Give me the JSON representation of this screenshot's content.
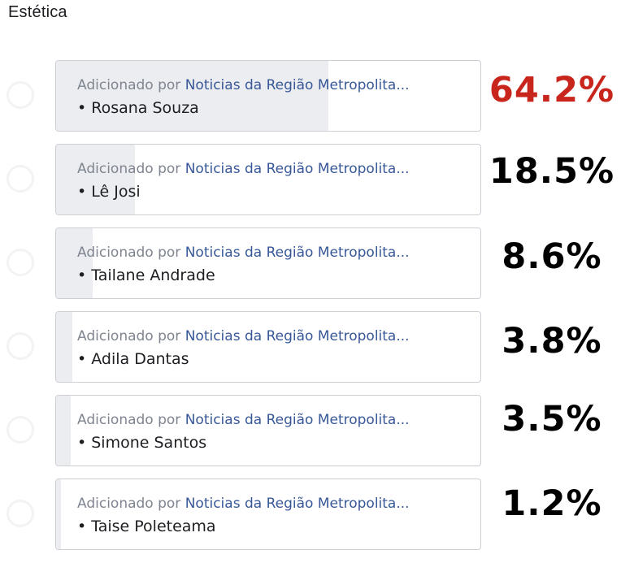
{
  "poll": {
    "title": "Estética",
    "added_by_prefix": "Adicionado por",
    "added_by_page": "Noticias da Região Metropolita...",
    "highlight_color": "#c8261c",
    "options": [
      {
        "label": "• Rosana Souza",
        "percent": "64.2%",
        "value": 64.2
      },
      {
        "label": "• Lê Josi",
        "percent": "18.5%",
        "value": 18.5
      },
      {
        "label": "• Tailane Andrade",
        "percent": "8.6%",
        "value": 8.6
      },
      {
        "label": "• Adila Dantas",
        "percent": "3.8%",
        "value": 3.8
      },
      {
        "label": "• Simone Santos",
        "percent": "3.5%",
        "value": 3.5
      },
      {
        "label": "• Taise Poleteama",
        "percent": "1.2%",
        "value": 1.2
      }
    ]
  }
}
